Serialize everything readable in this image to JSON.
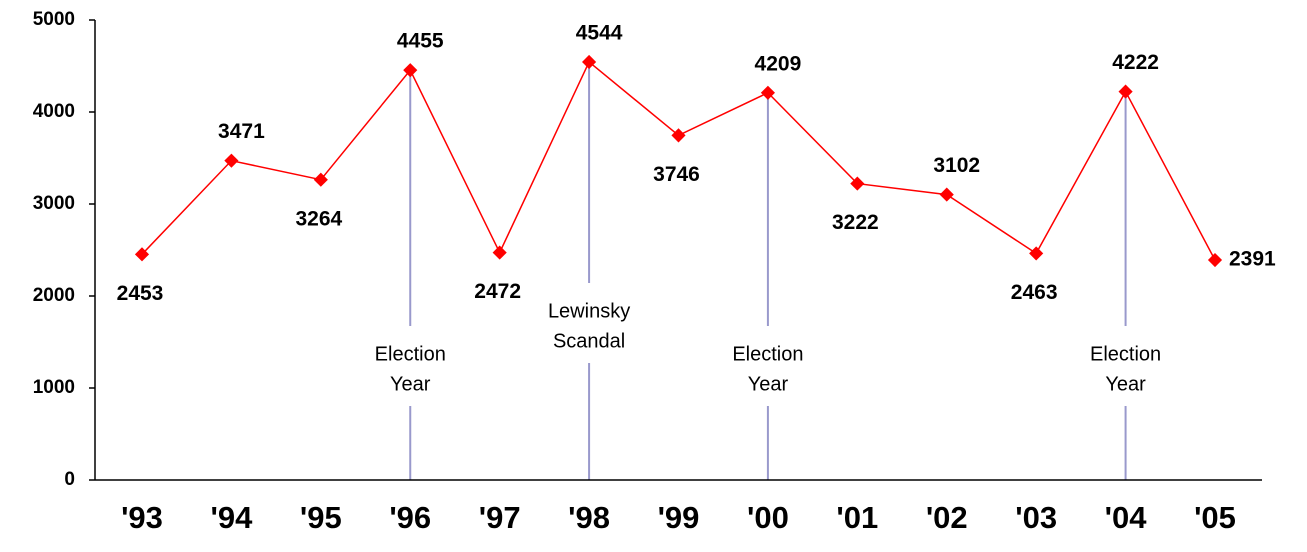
{
  "chart_data": {
    "type": "line",
    "categories": [
      "'93",
      "'94",
      "'95",
      "'96",
      "'97",
      "'98",
      "'99",
      "'00",
      "'01",
      "'02",
      "'03",
      "'04",
      "'05"
    ],
    "values": [
      2453,
      3471,
      3264,
      4455,
      2472,
      4544,
      3746,
      4209,
      3222,
      3102,
      2463,
      4222,
      2391
    ],
    "color": "#ff0000",
    "ylim": [
      0,
      5000
    ],
    "yticks": [
      0,
      1000,
      2000,
      3000,
      4000,
      5000
    ],
    "annotations": [
      {
        "at": "'96",
        "lines": [
          "Election",
          "Year"
        ]
      },
      {
        "at": "'98",
        "lines": [
          "Lewinsky",
          "Scandal"
        ]
      },
      {
        "at": "'00",
        "lines": [
          "Election",
          "Year"
        ]
      },
      {
        "at": "'04",
        "lines": [
          "Election",
          "Year"
        ]
      }
    ],
    "annotation_color": "#9999cc"
  }
}
